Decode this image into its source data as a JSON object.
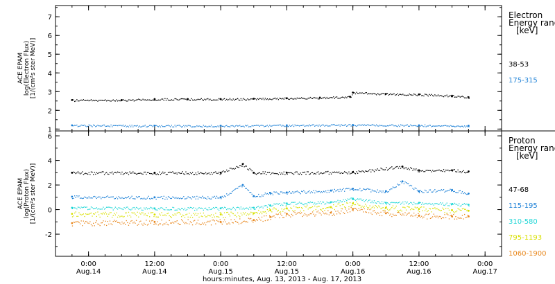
{
  "chart_data": [
    {
      "type": "scatter",
      "panel": "electron",
      "ylabel_lines": [
        "ACE EPAM",
        "log(Electron Flux)",
        "[1/(cm²s ster MeV)]"
      ],
      "ylim": [
        0.9,
        7.6
      ],
      "yticks": [
        1,
        2,
        3,
        4,
        5,
        6,
        7
      ],
      "legend_title_lines": [
        "Electron",
        "Energy range",
        "[keV]"
      ],
      "series": [
        {
          "name": "38-53",
          "color": "#000000",
          "x": [
            "2013-08-13 21:00",
            "2013-08-14 06:00",
            "2013-08-14 12:00",
            "2013-08-14 18:00",
            "2013-08-15 00:00",
            "2013-08-15 06:00",
            "2013-08-15 12:00",
            "2013-08-15 18:00",
            "2013-08-15 23:30",
            "2013-08-16 00:00",
            "2013-08-16 06:00",
            "2013-08-16 12:00",
            "2013-08-16 18:00",
            "2013-08-16 21:00"
          ],
          "y": [
            2.55,
            2.55,
            2.6,
            2.6,
            2.6,
            2.62,
            2.65,
            2.68,
            2.72,
            2.95,
            2.88,
            2.85,
            2.78,
            2.7
          ]
        },
        {
          "name": "175-315",
          "color": "#1a7fd6",
          "x": [
            "2013-08-13 21:00",
            "2013-08-14 12:00",
            "2013-08-15 00:00",
            "2013-08-15 12:00",
            "2013-08-16 00:00",
            "2013-08-16 12:00",
            "2013-08-16 21:00"
          ],
          "y": [
            1.2,
            1.18,
            1.18,
            1.2,
            1.22,
            1.2,
            1.18
          ]
        }
      ]
    },
    {
      "type": "scatter",
      "panel": "proton",
      "ylabel_lines": [
        "ACE EPAM",
        "log(Proton Flux)",
        "[1/(cm²s ster MeV)]"
      ],
      "ylim": [
        -3.8,
        6.4
      ],
      "yticks": [
        -2,
        0,
        2,
        4,
        6
      ],
      "legend_title_lines": [
        "Proton",
        "Energy range",
        "[keV]"
      ],
      "series": [
        {
          "name": "47-68",
          "color": "#000000",
          "x": [
            "2013-08-13 21:00",
            "2013-08-14 12:00",
            "2013-08-15 00:00",
            "2013-08-15 04:00",
            "2013-08-15 06:00",
            "2013-08-15 12:00",
            "2013-08-16 00:00",
            "2013-08-16 09:00",
            "2013-08-16 12:00",
            "2013-08-16 18:00",
            "2013-08-16 21:00"
          ],
          "y": [
            3.0,
            3.0,
            3.0,
            3.7,
            3.0,
            3.0,
            3.05,
            3.5,
            3.2,
            3.2,
            3.1
          ]
        },
        {
          "name": "115-195",
          "color": "#1a7fd6",
          "x": [
            "2013-08-13 21:00",
            "2013-08-14 12:00",
            "2013-08-15 00:00",
            "2013-08-15 04:00",
            "2013-08-15 06:00",
            "2013-08-15 09:00",
            "2013-08-15 12:00",
            "2013-08-15 20:00",
            "2013-08-16 00:00",
            "2013-08-16 06:00",
            "2013-08-16 09:00",
            "2013-08-16 12:00",
            "2013-08-16 18:00",
            "2013-08-16 21:00"
          ],
          "y": [
            1.05,
            1.0,
            1.0,
            2.0,
            1.1,
            1.35,
            1.4,
            1.55,
            1.7,
            1.5,
            2.3,
            1.5,
            1.6,
            1.3
          ]
        },
        {
          "name": "310-580",
          "color": "#1fd6d6",
          "x": [
            "2013-08-13 21:00",
            "2013-08-14 12:00",
            "2013-08-15 00:00",
            "2013-08-15 06:00",
            "2013-08-15 09:00",
            "2013-08-15 12:00",
            "2013-08-15 20:00",
            "2013-08-16 00:00",
            "2013-08-16 06:00",
            "2013-08-16 12:00",
            "2013-08-16 18:00",
            "2013-08-16 21:00"
          ],
          "y": [
            0.15,
            0.1,
            0.1,
            0.15,
            0.35,
            0.5,
            0.6,
            0.9,
            0.55,
            0.55,
            0.45,
            0.4
          ]
        },
        {
          "name": "795-1193",
          "color": "#d8e000",
          "x": [
            "2013-08-13 21:00",
            "2013-08-14 12:00",
            "2013-08-15 00:00",
            "2013-08-15 06:00",
            "2013-08-15 09:00",
            "2013-08-15 12:00",
            "2013-08-15 20:00",
            "2013-08-16 00:00",
            "2013-08-16 06:00",
            "2013-08-16 12:00",
            "2013-08-16 18:00",
            "2013-08-16 21:00"
          ],
          "y": [
            -0.35,
            -0.4,
            -0.4,
            -0.3,
            -0.05,
            0.1,
            0.2,
            0.5,
            0.15,
            0.05,
            -0.05,
            -0.1
          ]
        },
        {
          "name": "1060-1900",
          "color": "#e8861a",
          "x": [
            "2013-08-13 21:00",
            "2013-08-14 12:00",
            "2013-08-15 00:00",
            "2013-08-15 06:00",
            "2013-08-15 09:00",
            "2013-08-15 12:00",
            "2013-08-15 20:00",
            "2013-08-16 00:00",
            "2013-08-16 06:00",
            "2013-08-16 12:00",
            "2013-08-16 18:00",
            "2013-08-16 21:00"
          ],
          "y": [
            -1.1,
            -1.0,
            -1.0,
            -0.85,
            -0.6,
            -0.35,
            -0.25,
            0.05,
            -0.3,
            -0.5,
            -0.55,
            -0.55
          ]
        }
      ]
    }
  ],
  "x_axis": {
    "range": [
      "2013-08-13 18:00",
      "2013-08-17 03:00"
    ],
    "ticks": [
      {
        "time": "2013-08-14 00:00",
        "hour": "0:00",
        "date": "Aug.14"
      },
      {
        "time": "2013-08-14 12:00",
        "hour": "12:00",
        "date": "Aug.14"
      },
      {
        "time": "2013-08-15 00:00",
        "hour": "0:00",
        "date": "Aug.15"
      },
      {
        "time": "2013-08-15 12:00",
        "hour": "12:00",
        "date": "Aug.15"
      },
      {
        "time": "2013-08-16 00:00",
        "hour": "0:00",
        "date": "Aug.16"
      },
      {
        "time": "2013-08-16 12:00",
        "hour": "12:00",
        "date": "Aug.16"
      },
      {
        "time": "2013-08-17 00:00",
        "hour": "0:00",
        "date": "Aug.17"
      }
    ],
    "label": "hours:minutes, Aug. 13, 2013 - Aug. 17, 2013"
  }
}
